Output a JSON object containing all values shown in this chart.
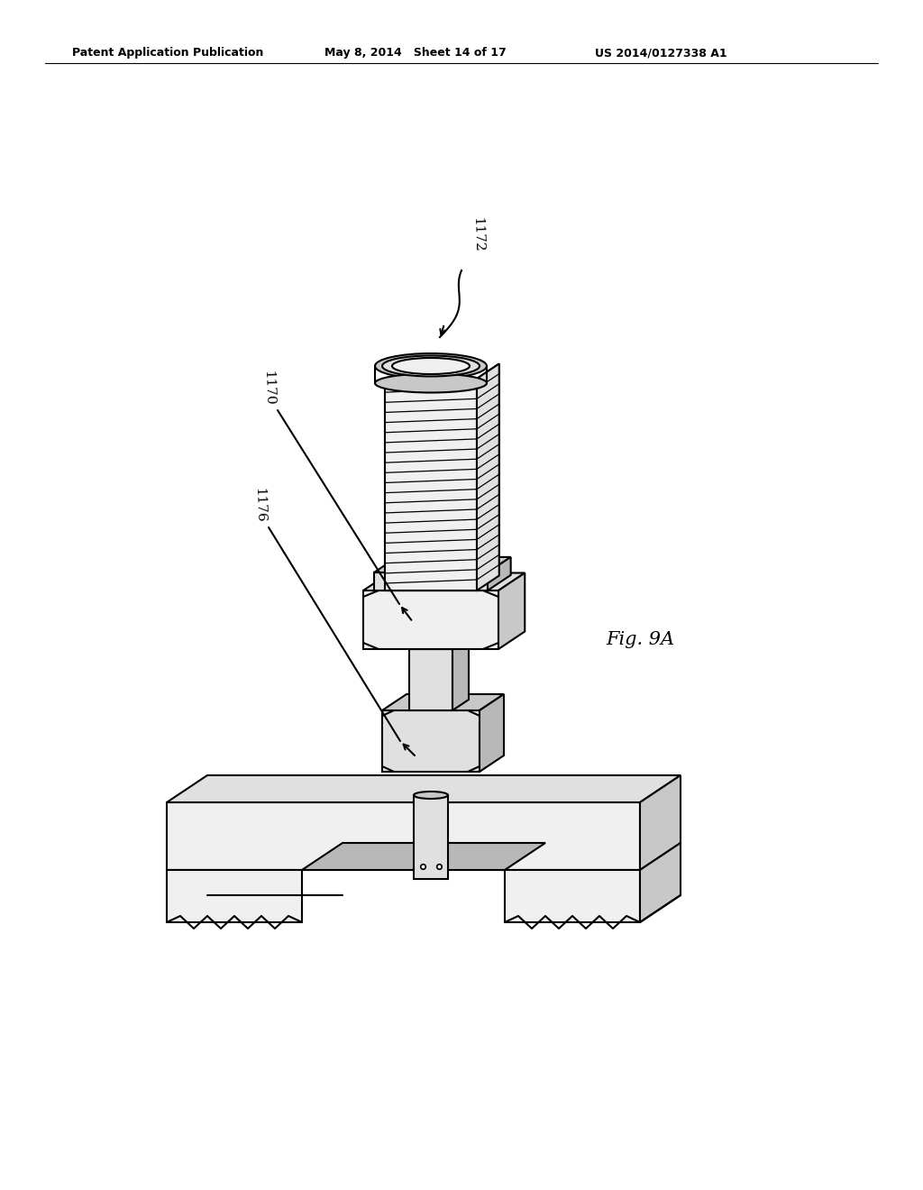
{
  "bg_color": "#ffffff",
  "header_left": "Patent Application Publication",
  "header_mid": "May 8, 2014   Sheet 14 of 17",
  "header_right": "US 2014/0127338 A1",
  "fig_label": "Fig. 9A",
  "label_1172": "1172",
  "label_1170": "1170",
  "label_1176": "1176",
  "line_color": "#000000",
  "line_width": 1.5,
  "fill_light": "#f0f0f0",
  "fill_mid": "#e0e0e0",
  "fill_dark": "#c8c8c8",
  "fill_darker": "#b8b8b8"
}
